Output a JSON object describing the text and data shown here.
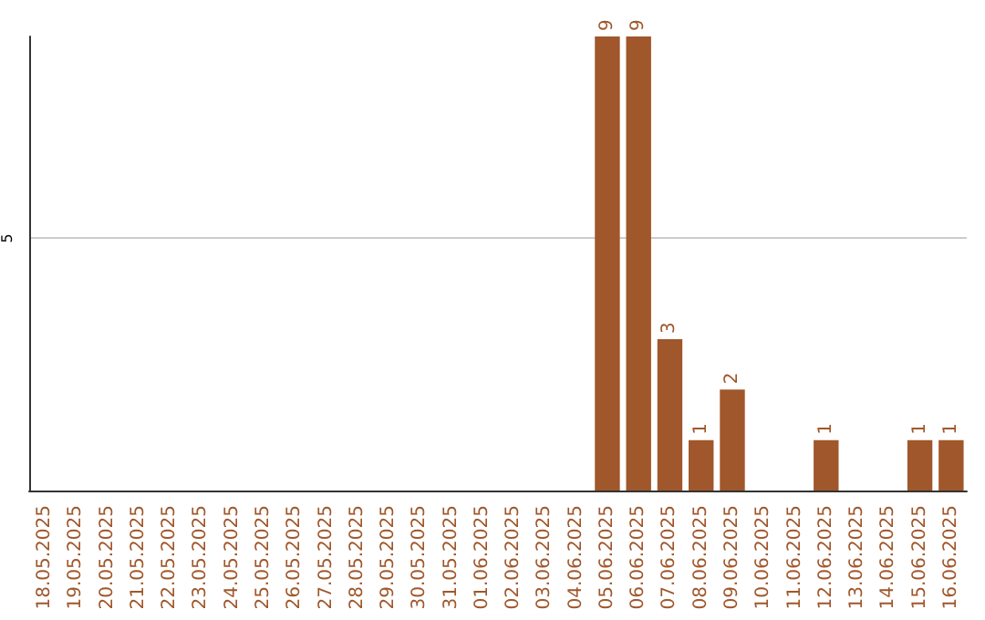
{
  "chart_data": {
    "type": "bar",
    "categories": [
      "18.05.2025",
      "19.05.2025",
      "20.05.2025",
      "21.05.2025",
      "22.05.2025",
      "23.05.2025",
      "24.05.2025",
      "25.05.2025",
      "26.05.2025",
      "27.05.2025",
      "28.05.2025",
      "29.05.2025",
      "30.05.2025",
      "31.05.2025",
      "01.06.2025",
      "02.06.2025",
      "03.06.2025",
      "04.06.2025",
      "05.06.2025",
      "06.06.2025",
      "07.06.2025",
      "08.06.2025",
      "09.06.2025",
      "10.06.2025",
      "11.06.2025",
      "12.06.2025",
      "13.06.2025",
      "14.06.2025",
      "15.06.2025",
      "16.06.2025"
    ],
    "values": [
      null,
      null,
      null,
      null,
      null,
      null,
      null,
      null,
      null,
      null,
      null,
      null,
      null,
      null,
      null,
      null,
      null,
      null,
      9,
      9,
      3,
      1,
      2,
      null,
      null,
      1,
      null,
      null,
      1,
      1
    ],
    "color": "#a0572b",
    "ylim": [
      0,
      9
    ],
    "yticks": [
      5
    ],
    "grid": "y",
    "data_labels": true
  }
}
